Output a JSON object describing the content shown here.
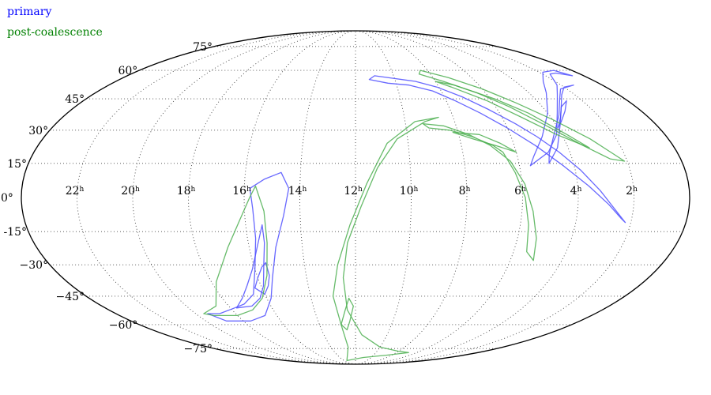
{
  "chart_data": {
    "type": "contour",
    "projection": "mollweide",
    "grid": true,
    "legend": "top-left",
    "series": [
      {
        "name": "primary",
        "color": "#4d4dff",
        "contours": [
          [
            [
              0.6,
              57
            ],
            [
              1.2,
              58.5
            ],
            [
              1.6,
              58
            ],
            [
              2.2,
              52
            ],
            [
              2.8,
              47
            ],
            [
              3.6,
              38
            ],
            [
              4.2,
              28
            ],
            [
              4.8,
              20
            ],
            [
              5.6,
              14
            ],
            [
              5.4,
              18
            ],
            [
              4.8,
              27
            ],
            [
              4.0,
              38
            ],
            [
              3.2,
              48
            ],
            [
              2.6,
              54
            ],
            [
              1.8,
              59
            ],
            [
              1.0,
              60
            ],
            [
              0.6,
              57
            ]
          ],
          [
            [
              1.4,
              52
            ],
            [
              2.0,
              51
            ],
            [
              2.6,
              47
            ],
            [
              3.2,
              41
            ],
            [
              3.8,
              33
            ],
            [
              4.4,
              22
            ],
            [
              4.9,
              15
            ],
            [
              4.8,
              19
            ],
            [
              4.3,
              28
            ],
            [
              3.6,
              37
            ],
            [
              2.9,
              45
            ],
            [
              2.3,
              50
            ],
            [
              1.4,
              52
            ]
          ],
          [
            [
              2.7,
              44
            ],
            [
              3.2,
              41
            ],
            [
              3.6,
              36
            ],
            [
              4.0,
              31
            ],
            [
              3.7,
              34
            ],
            [
              3.2,
              39
            ],
            [
              2.7,
              44
            ]
          ],
          [
            [
              2.2,
              -11
            ],
            [
              2.6,
              -6
            ],
            [
              3.2,
              3
            ],
            [
              3.8,
              12
            ],
            [
              4.4,
              20
            ],
            [
              5.0,
              27
            ],
            [
              5.6,
              33
            ],
            [
              6.4,
              40
            ],
            [
              7.2,
              46
            ],
            [
              8.1,
              51
            ],
            [
              9.0,
              54
            ],
            [
              10.0,
              55.5
            ],
            [
              11.0,
              57
            ],
            [
              11.3,
              55
            ],
            [
              10.4,
              53
            ],
            [
              9.4,
              52
            ],
            [
              8.4,
              49
            ],
            [
              7.6,
              44
            ],
            [
              6.8,
              38
            ],
            [
              6.0,
              31
            ],
            [
              5.2,
              23
            ],
            [
              4.4,
              14
            ],
            [
              3.6,
              5
            ],
            [
              2.9,
              -3
            ],
            [
              2.4,
              -9
            ],
            [
              2.2,
              -11
            ]
          ],
          [
            [
              15.8,
              4
            ],
            [
              15.3,
              8
            ],
            [
              14.7,
              11
            ],
            [
              14.4,
              4
            ],
            [
              14.6,
              -8
            ],
            [
              15.0,
              -22
            ],
            [
              15.4,
              -36
            ],
            [
              15.8,
              -46
            ],
            [
              16.6,
              -55
            ],
            [
              17.6,
              -58
            ],
            [
              18.9,
              -58
            ],
            [
              19.4,
              -54
            ],
            [
              18.8,
              -54
            ],
            [
              17.8,
              -51
            ],
            [
              17.2,
              -49
            ],
            [
              16.5,
              -44
            ],
            [
              16.0,
              -32
            ],
            [
              15.7,
              -18
            ],
            [
              15.7,
              -5
            ],
            [
              15.8,
              4
            ]
          ],
          [
            [
              15.4,
              -12
            ],
            [
              15.4,
              -20
            ],
            [
              15.6,
              -30
            ],
            [
              15.9,
              -40
            ],
            [
              16.3,
              -46
            ],
            [
              16.9,
              -50
            ],
            [
              17.7,
              -51
            ],
            [
              17.1,
              -46
            ],
            [
              16.6,
              -40
            ],
            [
              16.1,
              -32
            ],
            [
              15.7,
              -22
            ],
            [
              15.4,
              -12
            ]
          ],
          [
            [
              15.5,
              -29
            ],
            [
              15.5,
              -35
            ],
            [
              15.7,
              -40
            ],
            [
              16.0,
              -44
            ],
            [
              16.3,
              -41
            ],
            [
              16.0,
              -36
            ],
            [
              15.7,
              -31
            ],
            [
              15.5,
              -29
            ]
          ]
        ]
      },
      {
        "name": "post-coalescence",
        "color": "#4caf50",
        "contours": [
          [
            [
              2.1,
              16
            ],
            [
              3.0,
              26
            ],
            [
              4.0,
              35
            ],
            [
              5.0,
              43
            ],
            [
              6.0,
              50
            ],
            [
              7.2,
              56
            ],
            [
              8.4,
              60
            ],
            [
              8.6,
              58
            ],
            [
              7.6,
              54
            ],
            [
              6.4,
              48
            ],
            [
              5.4,
              41
            ],
            [
              4.4,
              32
            ],
            [
              3.4,
              23
            ],
            [
              2.6,
              17
            ],
            [
              2.1,
              16
            ]
          ],
          [
            [
              3.2,
              22
            ],
            [
              3.8,
              28
            ],
            [
              4.8,
              38
            ],
            [
              5.8,
              45
            ],
            [
              7.2,
              52
            ],
            [
              8.0,
              54
            ],
            [
              7.4,
              51
            ],
            [
              6.2,
              44
            ],
            [
              5.2,
              36
            ],
            [
              4.2,
              28
            ],
            [
              3.2,
              22
            ]
          ],
          [
            [
              5.1,
              -28
            ],
            [
              5.3,
              -18
            ],
            [
              5.6,
              -6
            ],
            [
              5.9,
              6
            ],
            [
              6.3,
              16
            ],
            [
              6.9,
              23
            ],
            [
              7.6,
              28
            ],
            [
              8.5,
              32
            ],
            [
              9.3,
              33
            ],
            [
              9.1,
              31
            ],
            [
              8.3,
              30
            ],
            [
              7.5,
              27
            ],
            [
              6.8,
              23
            ],
            [
              6.5,
              20
            ],
            [
              6.2,
              11
            ],
            [
              5.9,
              0
            ],
            [
              5.7,
              -12
            ],
            [
              5.5,
              -24
            ],
            [
              5.1,
              -28
            ]
          ],
          [
            [
              6.0,
              20
            ],
            [
              6.5,
              24
            ],
            [
              7.2,
              28
            ],
            [
              8.2,
              29
            ],
            [
              7.5,
              26
            ],
            [
              6.7,
              23
            ],
            [
              6.0,
              20
            ]
          ],
          [
            [
              13.5,
              -85
            ],
            [
              12.6,
              -74
            ],
            [
              12.8,
              -60
            ],
            [
              13.0,
              -45
            ],
            [
              12.7,
              -30
            ],
            [
              12.2,
              -12
            ],
            [
              11.6,
              6
            ],
            [
              10.8,
              24
            ],
            [
              9.6,
              34
            ],
            [
              8.6,
              36
            ],
            [
              9.2,
              34
            ],
            [
              10.4,
              26
            ],
            [
              11.2,
              13
            ],
            [
              11.8,
              -4
            ],
            [
              12.3,
              -20
            ],
            [
              12.5,
              -36
            ],
            [
              12.4,
              -52
            ],
            [
              11.6,
              -66
            ],
            [
              10.0,
              -74
            ],
            [
              8.0,
              -77
            ],
            [
              6.8,
              -78
            ],
            [
              8.5,
              -80
            ],
            [
              11.0,
              -82
            ],
            [
              13.5,
              -85
            ]
          ],
          [
            [
              12.5,
              -63
            ],
            [
              12.3,
              -58
            ],
            [
              12.1,
              -50
            ],
            [
              12.3,
              -46
            ],
            [
              12.5,
              -52
            ],
            [
              12.8,
              -60
            ],
            [
              12.5,
              -63
            ]
          ],
          [
            [
              15.6,
              5
            ],
            [
              15.8,
              0
            ],
            [
              16.2,
              -10
            ],
            [
              16.8,
              -22
            ],
            [
              17.8,
              -38
            ],
            [
              18.6,
              -50
            ],
            [
              19.6,
              -54
            ],
            [
              19.2,
              -55
            ],
            [
              18.0,
              -55
            ],
            [
              17.0,
              -52
            ],
            [
              16.2,
              -46
            ],
            [
              15.6,
              -35
            ],
            [
              15.3,
              -20
            ],
            [
              15.3,
              -6
            ],
            [
              15.6,
              5
            ]
          ]
        ]
      }
    ],
    "ra_ticks": [
      "22",
      "20",
      "18",
      "16",
      "14",
      "12",
      "10",
      "8",
      "6",
      "4",
      "2"
    ],
    "ra_unit": "h",
    "dec_ticks": [
      "75°",
      "60°",
      "45°",
      "30°",
      "15°",
      "0°",
      "-15°",
      "−30°",
      "−45°",
      "−60°",
      "−75°"
    ],
    "ra_values": [
      22,
      20,
      18,
      16,
      14,
      12,
      10,
      8,
      6,
      4,
      2
    ],
    "dec_values": [
      75,
      60,
      45,
      30,
      15,
      0,
      -15,
      -30,
      -45,
      -60,
      -75
    ],
    "ra_center": 12
  }
}
